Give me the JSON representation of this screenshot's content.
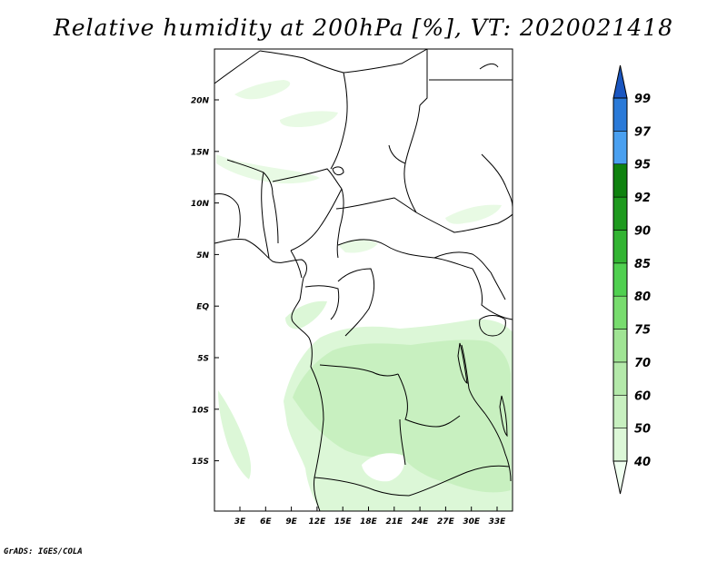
{
  "title": "Relative humidity at 200hPa [%], VT: 2020021418",
  "footer": "GrADS: IGES/COLA",
  "map": {
    "lat_labels": [
      "20N",
      "15N",
      "10N",
      "5N",
      "EQ",
      "5S",
      "10S",
      "15S"
    ],
    "lon_labels": [
      "3E",
      "6E",
      "9E",
      "12E",
      "15E",
      "18E",
      "21E",
      "24E",
      "27E",
      "30E",
      "33E"
    ]
  },
  "colorbar": {
    "levels": [
      "40",
      "50",
      "60",
      "70",
      "75",
      "80",
      "85",
      "90",
      "92",
      "95",
      "97",
      "99"
    ],
    "colors": [
      "#f0fff0",
      "#dcf7d7",
      "#c8f0c0",
      "#b4e9aa",
      "#a0e494",
      "#78dc6e",
      "#50d050",
      "#32b432",
      "#1e9a1e",
      "#0f820f",
      "#4aa0f0",
      "#2a7ad8",
      "#1a56c0"
    ]
  },
  "colors": {
    "frame": "#000000",
    "background": "#ffffff"
  }
}
